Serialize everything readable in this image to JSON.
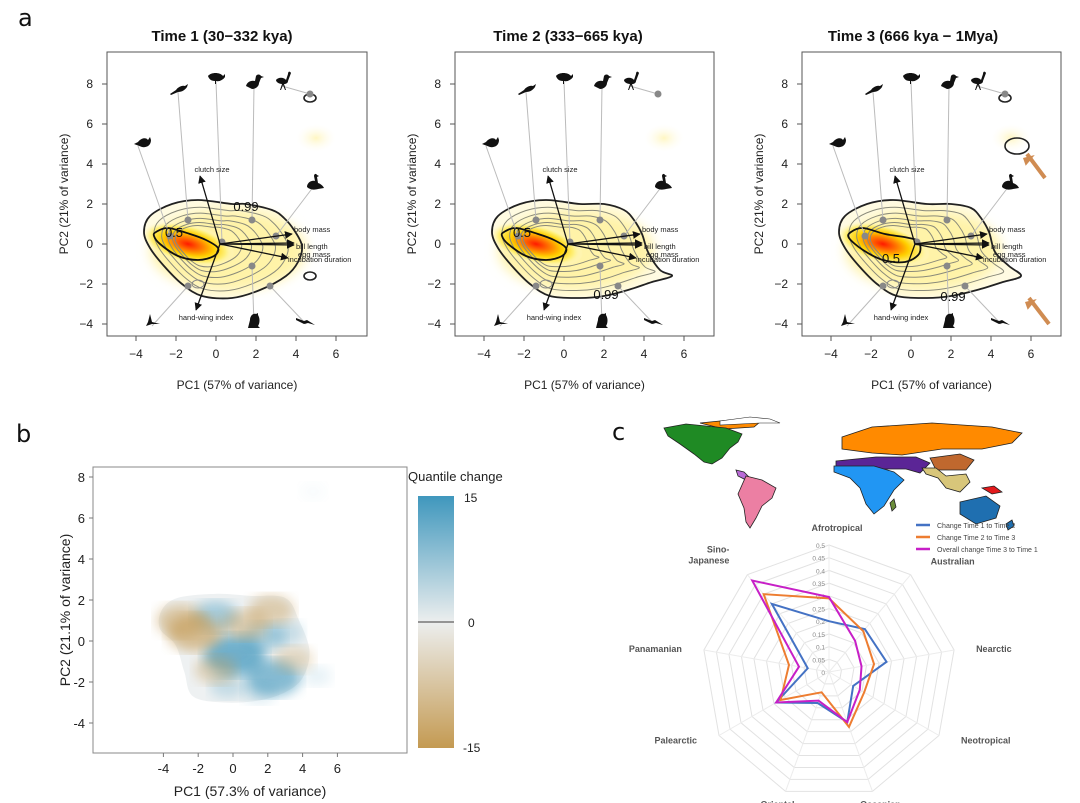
{
  "panel_labels": [
    "a",
    "b",
    "c"
  ],
  "chart_data": [
    {
      "id": "a1",
      "type": "contour",
      "title": "Time 1 (30−332 kya)",
      "xlabel": "PC1 (57% of variance)",
      "ylabel": "PC2 (21% of variance)",
      "xlim": [
        -5.5,
        7.5
      ],
      "ylim": [
        -4.6,
        9.6
      ],
      "xticks": [
        -4,
        -2,
        0,
        2,
        4,
        6
      ],
      "yticks": [
        -4,
        -2,
        0,
        2,
        4,
        6,
        8
      ],
      "contour_labels": [
        {
          "text": "0.5",
          "x": -2.1,
          "y": 0.6
        },
        {
          "text": "0.99",
          "x": 1.5,
          "y": 1.9
        }
      ],
      "extra_islands": [
        {
          "x": 4.7,
          "y": 7.3
        },
        {
          "x": 4.7,
          "y": -1.6
        }
      ],
      "arrow_annotations": false
    },
    {
      "id": "a2",
      "type": "contour",
      "title": "Time 2 (333−665 kya)",
      "xlabel": "PC1 (57% of variance)",
      "ylabel": "PC2 (21% of variance)",
      "xlim": [
        -5.5,
        7.5
      ],
      "ylim": [
        -4.6,
        9.6
      ],
      "xticks": [
        -4,
        -2,
        0,
        2,
        4,
        6
      ],
      "yticks": [
        -4,
        -2,
        0,
        2,
        4,
        6,
        8
      ],
      "contour_labels": [
        {
          "text": "0.5",
          "x": -2.1,
          "y": 0.6
        },
        {
          "text": "0.99",
          "x": 2.1,
          "y": -2.5
        }
      ],
      "extra_islands": [],
      "arrow_annotations": false
    },
    {
      "id": "a3",
      "type": "contour",
      "title": "Time 3 (666 kya − 1Mya)",
      "xlabel": "PC1 (57% of variance)",
      "ylabel": "PC2 (21% of variance)",
      "xlim": [
        -5.5,
        7.5
      ],
      "ylim": [
        -4.6,
        9.6
      ],
      "xticks": [
        -4,
        -2,
        0,
        2,
        4,
        6
      ],
      "yticks": [
        -4,
        -2,
        0,
        2,
        4,
        6,
        8
      ],
      "contour_labels": [
        {
          "text": "0.5",
          "x": -1.0,
          "y": -0.7
        },
        {
          "text": "0.99",
          "x": 2.1,
          "y": -2.6
        }
      ],
      "extra_islands": [
        {
          "x": 4.7,
          "y": 7.3
        },
        {
          "x": 5.3,
          "y": 4.9
        }
      ],
      "arrow_annotations": true,
      "arrow_color": "#d08c52"
    },
    {
      "id": "a-shared",
      "type": "biplot-overlay",
      "density_peak": {
        "x": -1.5,
        "y": 0.1
      },
      "trait_vectors": [
        {
          "label": "clutch size",
          "x": -0.8,
          "y": 3.4
        },
        {
          "label": "body mass",
          "x": 3.8,
          "y": 0.5
        },
        {
          "label": "bill length",
          "x": 3.9,
          "y": 0.05
        },
        {
          "label": "egg mass",
          "x": 3.9,
          "y": -0.05
        },
        {
          "label": "incubation duration",
          "x": 3.6,
          "y": -0.7
        },
        {
          "label": "hand-wing index",
          "x": -1.0,
          "y": -3.3
        }
      ],
      "species_points": [
        {
          "x": -2.3,
          "y": 0.4,
          "icon_x": -3.9,
          "icon_y": 4.9,
          "icon": "songbird"
        },
        {
          "x": -1.4,
          "y": 1.2,
          "icon_x": -1.9,
          "icon_y": 7.6,
          "icon": "perching-bird"
        },
        {
          "x": 0.3,
          "y": 0.1,
          "icon_x": 0.0,
          "icon_y": 8.1,
          "icon": "grouse"
        },
        {
          "x": 1.8,
          "y": 1.2,
          "icon_x": 1.9,
          "icon_y": 7.9,
          "icon": "duck"
        },
        {
          "x": 4.7,
          "y": 7.5,
          "icon_x": 3.3,
          "icon_y": 7.9,
          "icon": "ostrich"
        },
        {
          "x": 3.0,
          "y": 0.4,
          "icon_x": 4.9,
          "icon_y": 2.9,
          "icon": "goose"
        },
        {
          "x": 1.8,
          "y": -1.1,
          "icon_x": 1.9,
          "icon_y": -4.0,
          "icon": "raptor"
        },
        {
          "x": 2.7,
          "y": -2.1,
          "icon_x": 4.5,
          "icon_y": -4.0,
          "icon": "seabird"
        },
        {
          "x": -1.4,
          "y": -2.1,
          "icon_x": -3.2,
          "icon_y": -4.1,
          "icon": "swift"
        }
      ]
    },
    {
      "id": "b",
      "type": "heatmap",
      "xlabel": "PC1 (57.3% of variance)",
      "ylabel": "PC2 (21.1% of variance)",
      "xlim": [
        -8,
        9.9
      ],
      "ylim": [
        -5.5,
        8.5
      ],
      "xticks": [
        -4,
        -2,
        0,
        2,
        4,
        6
      ],
      "yticks": [
        -4,
        -2,
        0,
        2,
        4,
        6,
        8
      ],
      "colorbar": {
        "title": "Quantile change",
        "min": -15,
        "mid": 0,
        "max": 15,
        "ticks": [
          "15",
          "0",
          "-15"
        ],
        "high_color": "#3f97bd",
        "mid_color": "#eceeee",
        "low_color": "#c49a52"
      },
      "blobs": [
        {
          "x": 0.1,
          "y": -0.7,
          "value": 12
        },
        {
          "x": -1.0,
          "y": 1.2,
          "value": 7
        },
        {
          "x": 2.3,
          "y": -1.8,
          "value": 10
        },
        {
          "x": 1.8,
          "y": 0.2,
          "value": 6
        },
        {
          "x": -0.3,
          "y": -2.2,
          "value": 4
        },
        {
          "x": 1.5,
          "y": -2.5,
          "value": 3
        },
        {
          "x": 3.0,
          "y": 0.4,
          "value": 4
        },
        {
          "x": -2.2,
          "y": 0.4,
          "value": -10
        },
        {
          "x": -3.0,
          "y": 1.0,
          "value": -8
        },
        {
          "x": 0.7,
          "y": 0.8,
          "value": -7
        },
        {
          "x": 2.2,
          "y": 1.5,
          "value": -7
        },
        {
          "x": -1.0,
          "y": -1.4,
          "value": -6
        },
        {
          "x": 3.5,
          "y": -0.9,
          "value": -5
        },
        {
          "x": 4.6,
          "y": 7.3,
          "value": 0.5
        },
        {
          "x": 4.8,
          "y": -1.7,
          "value": 2
        }
      ]
    },
    {
      "id": "c-map",
      "type": "map",
      "regions": [
        {
          "name": "Nearctic",
          "color": "#1f8a24"
        },
        {
          "name": "Panamanian",
          "color": "#b96ad6"
        },
        {
          "name": "Neotropical",
          "color": "#ec7fa3"
        },
        {
          "name": "Palearctic",
          "color": "#ff8a00"
        },
        {
          "name": "Saharo-Arabian",
          "color": "#5b2596"
        },
        {
          "name": "Afrotropical",
          "color": "#2196f3"
        },
        {
          "name": "Madagascan",
          "color": "#6b8e3a"
        },
        {
          "name": "Sino-Japanese",
          "color": "#c0682e"
        },
        {
          "name": "Oriental",
          "color": "#d8c67a"
        },
        {
          "name": "Oceanian",
          "color": "#e31a1c"
        },
        {
          "name": "Australian",
          "color": "#1f6fb0"
        }
      ]
    },
    {
      "id": "c-radar",
      "type": "radar",
      "axes": [
        "Afrotropical",
        "Australian",
        "Nearctic",
        "Neotropical",
        "Oceanian",
        "Oriental",
        "Palearctic",
        "Panamanian",
        "Sino-\nJapanese"
      ],
      "rlim": [
        0,
        0.5
      ],
      "rticks": [
        "0",
        "0.05",
        "0.1",
        "0.15",
        "0.2",
        "0.25",
        "0.3",
        "0.35",
        "0.4",
        "0.45",
        "0.5"
      ],
      "legend_position": "top-right",
      "series": [
        {
          "name": "Change Time 1 to Time 2",
          "color": "#4472c4",
          "values": [
            0.2,
            0.22,
            0.23,
            0.11,
            0.21,
            0.13,
            0.24,
            0.085,
            0.35
          ]
        },
        {
          "name": "Change Time 2 to Time 3",
          "color": "#ed7d31",
          "values": [
            0.29,
            0.21,
            0.18,
            0.16,
            0.23,
            0.085,
            0.22,
            0.16,
            0.4
          ]
        },
        {
          "name": "Overall change Time 3 to Time 1",
          "color": "#c71fc7",
          "values": [
            0.295,
            0.16,
            0.13,
            0.14,
            0.21,
            0.12,
            0.24,
            0.12,
            0.47
          ]
        }
      ]
    }
  ]
}
